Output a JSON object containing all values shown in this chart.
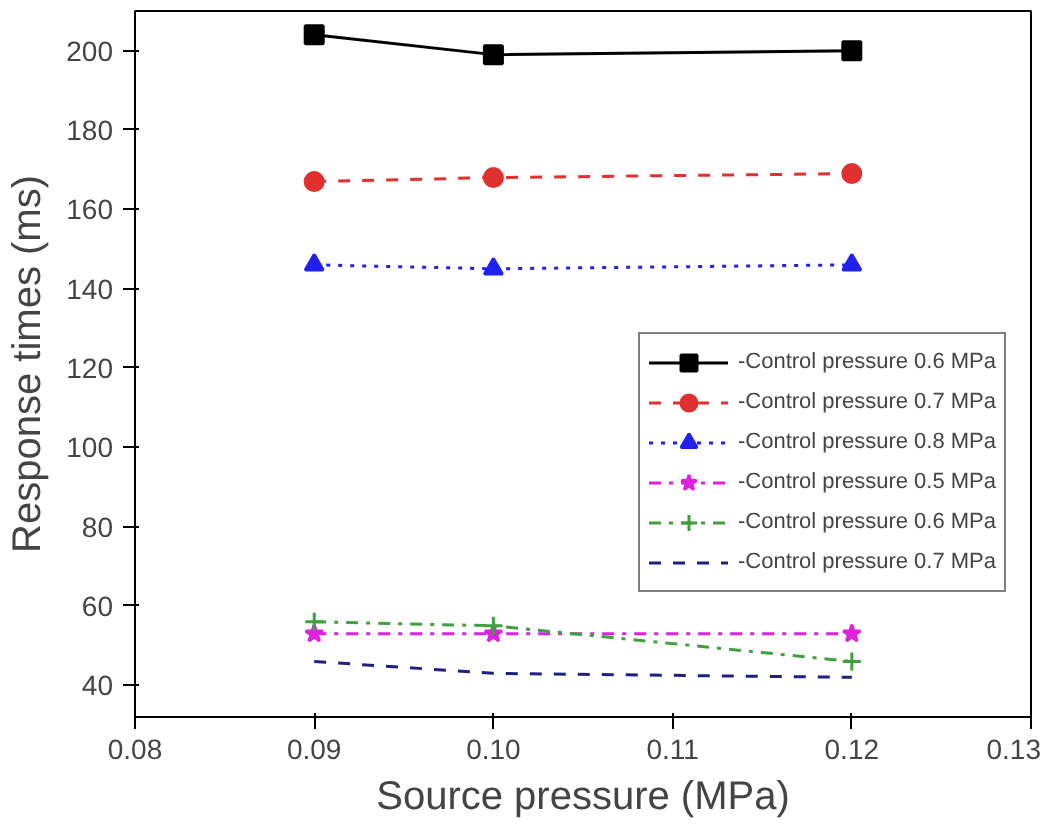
{
  "chart_data": {
    "type": "line",
    "xlabel": "Source pressure (MPa)",
    "ylabel": "Response times (ms)",
    "x": [
      0.09,
      0.1,
      0.12
    ],
    "xlim": [
      0.08,
      0.13
    ],
    "xticks": [
      {
        "value": 0.08,
        "label": "0.08"
      },
      {
        "value": 0.09,
        "label": "0.09"
      },
      {
        "value": 0.1,
        "label": "0.10"
      },
      {
        "value": 0.11,
        "label": "0.11"
      },
      {
        "value": 0.12,
        "label": "0.12"
      },
      {
        "value": 0.13,
        "label": "0.13"
      }
    ],
    "ylim": [
      32,
      210
    ],
    "yticks": [
      40,
      60,
      80,
      100,
      120,
      140,
      160,
      180,
      200
    ],
    "grid": false,
    "legend": "right",
    "series": [
      {
        "name": "-Control pressure 0.6 MPa",
        "color": "#000000",
        "values": [
          204,
          199,
          200
        ],
        "marker": "square",
        "line_style": "solid"
      },
      {
        "name": "-Control pressure 0.7 MPa",
        "color": "#e03030",
        "values": [
          167,
          168,
          169
        ],
        "marker": "circle",
        "line_style": "dashed"
      },
      {
        "name": "-Control pressure 0.8 MPa",
        "color": "#2020f0",
        "values": [
          146,
          145,
          146
        ],
        "marker": "triangle",
        "line_style": "dotted"
      },
      {
        "name": "-Control pressure 0.5 MPa",
        "color": "#e020e0",
        "values": [
          53,
          53,
          53
        ],
        "marker": "star",
        "line_style": "dashdot"
      },
      {
        "name": "-Control pressure 0.6 MPa",
        "color": "#40a040",
        "values": [
          56,
          55,
          46
        ],
        "marker": "cross",
        "line_style": "dashdot"
      },
      {
        "name": "-Control pressure 0.7 MPa",
        "color": "#202080",
        "values": [
          46,
          43,
          42
        ],
        "marker": "none",
        "line_style": "dashed"
      }
    ]
  }
}
